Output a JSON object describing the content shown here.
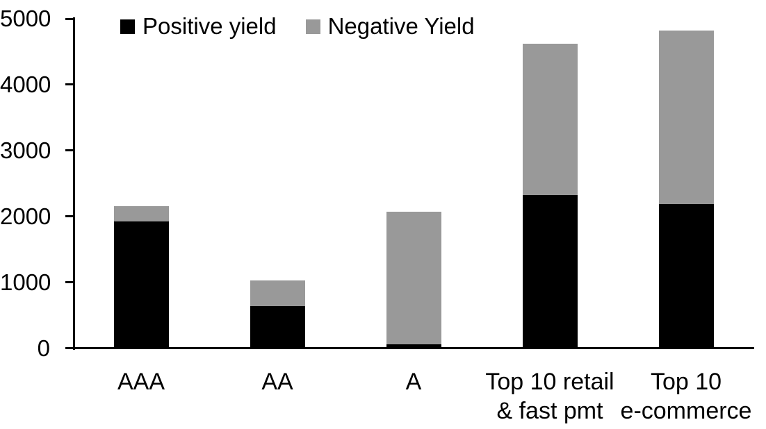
{
  "chart_data": {
    "type": "bar",
    "stacked": true,
    "title": "",
    "xlabel": "",
    "ylabel": "",
    "categories": [
      "AAA",
      "AA",
      "A",
      "Top 10 retail\n& fast pmt",
      "Top 10\ne-commerce"
    ],
    "series": [
      {
        "name": "Positive yield",
        "color": "#000000",
        "values": [
          1905,
          620,
          40,
          2305,
          2175
        ]
      },
      {
        "name": "Negative Yield",
        "color": "#999999",
        "values": [
          235,
          395,
          2020,
          2300,
          2630
        ]
      }
    ],
    "totals": [
      2140,
      1015,
      2060,
      4605,
      4805
    ],
    "ylim": [
      0,
      5000
    ],
    "yticks": [
      0,
      1000,
      2000,
      3000,
      4000,
      5000
    ],
    "legend_position": "top",
    "grid": false,
    "axis_color": "#000000",
    "background_color": "#ffffff"
  }
}
